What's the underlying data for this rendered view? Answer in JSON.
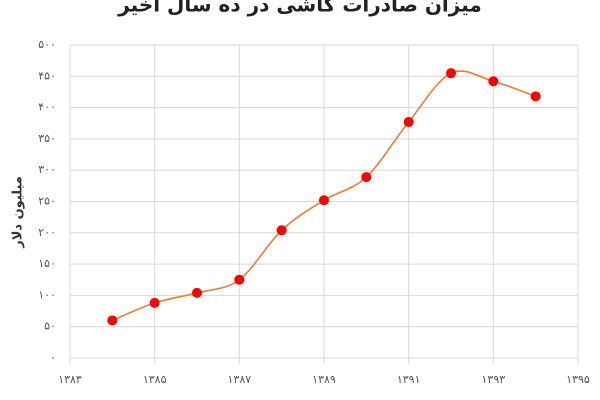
{
  "chart_data": {
    "type": "line",
    "title": "میزان صادرات کاشی در ده سال اخیر",
    "y_label": "میلیون دلار",
    "series": [
      {
        "color": "#ed7d31",
        "marker_color": "#ff0000",
        "x": [
          1384,
          1385,
          1386,
          1387,
          1388,
          1389,
          1390,
          1391,
          1392,
          1393,
          1394
        ],
        "values": [
          60,
          88,
          104,
          125,
          204,
          252,
          289,
          377,
          455,
          442,
          418
        ]
      }
    ],
    "xlim": [
      1383,
      1395
    ],
    "xticks": [
      {
        "value": 1383,
        "label": "۱۳۸۳"
      },
      {
        "value": 1385,
        "label": "۱۳۸۵"
      },
      {
        "value": 1387,
        "label": "۱۳۸۷"
      },
      {
        "value": 1389,
        "label": "۱۳۸۹"
      },
      {
        "value": 1391,
        "label": "۱۳۹۱"
      },
      {
        "value": 1393,
        "label": "۱۳۹۳"
      },
      {
        "value": 1395,
        "label": "۱۳۹۵"
      }
    ],
    "ylim": [
      0,
      500
    ],
    "yticks": [
      {
        "value": 0,
        "label": "۰"
      },
      {
        "value": 50,
        "label": "۵۰"
      },
      {
        "value": 100,
        "label": "۱۰۰"
      },
      {
        "value": 150,
        "label": "۱۵۰"
      },
      {
        "value": 200,
        "label": "۲۰۰"
      },
      {
        "value": 250,
        "label": "۲۵۰"
      },
      {
        "value": 300,
        "label": "۳۰۰"
      },
      {
        "value": 350,
        "label": "۳۵۰"
      },
      {
        "value": 400,
        "label": "۴۰۰"
      },
      {
        "value": 450,
        "label": "۴۵۰"
      },
      {
        "value": 500,
        "label": "۵۰۰"
      }
    ],
    "grid": true
  }
}
